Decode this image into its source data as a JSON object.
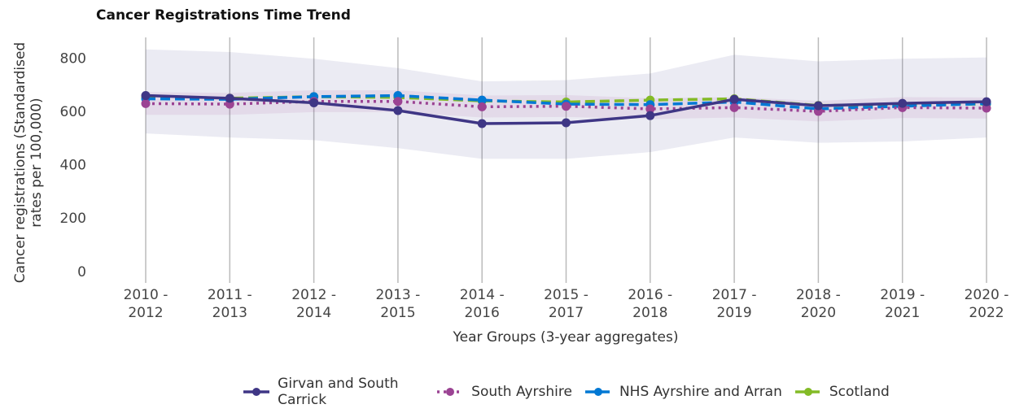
{
  "chart_data": {
    "type": "line",
    "title": "Cancer Registrations Time Trend",
    "ylabel": "Cancer registrations (Standardised rates per 100,000)",
    "xlabel": "Year Groups (3-year aggregates)",
    "categories": [
      "2010 - 2012",
      "2011 - 2013",
      "2012 - 2014",
      "2013 - 2015",
      "2014 - 2016",
      "2015 - 2017",
      "2016 - 2018",
      "2017 - 2019",
      "2018 - 2020",
      "2019 - 2021",
      "2020 - 2022"
    ],
    "ylim": [
      -40,
      880
    ],
    "yticks": [
      0,
      200,
      400,
      600,
      800
    ],
    "grid": "x",
    "legend": "bottom",
    "series": [
      {
        "name": "Girvan and South Carrick",
        "color": "#3f3685",
        "dash": "solid",
        "values": [
          662,
          652,
          635,
          606,
          557,
          560,
          587,
          648,
          624,
          633,
          639
        ],
        "ci_lower": [
          520,
          505,
          495,
          465,
          425,
          425,
          450,
          505,
          485,
          490,
          505
        ],
        "ci_upper": [
          835,
          825,
          800,
          765,
          715,
          720,
          745,
          815,
          790,
          800,
          805
        ]
      },
      {
        "name": "South Ayrshire",
        "color": "#9b4393",
        "dash": "dot",
        "values": [
          632,
          630,
          640,
          640,
          620,
          622,
          612,
          617,
          603,
          617,
          615
        ],
        "ci_lower": [
          590,
          590,
          600,
          600,
          580,
          582,
          574,
          580,
          565,
          578,
          576
        ],
        "ci_upper": [
          675,
          672,
          682,
          682,
          662,
          664,
          652,
          656,
          642,
          656,
          655
        ]
      },
      {
        "name": "NHS Ayrshire and Arran",
        "color": "#0078d4",
        "dash": "dash",
        "values": [
          650,
          648,
          658,
          662,
          645,
          630,
          628,
          638,
          612,
          622,
          632
        ]
      },
      {
        "name": "Scotland",
        "color": "#83bb26",
        "dash": "dash",
        "values": [
          655,
          652,
          658,
          655,
          642,
          638,
          645,
          650,
          625,
          628,
          630
        ]
      }
    ]
  }
}
